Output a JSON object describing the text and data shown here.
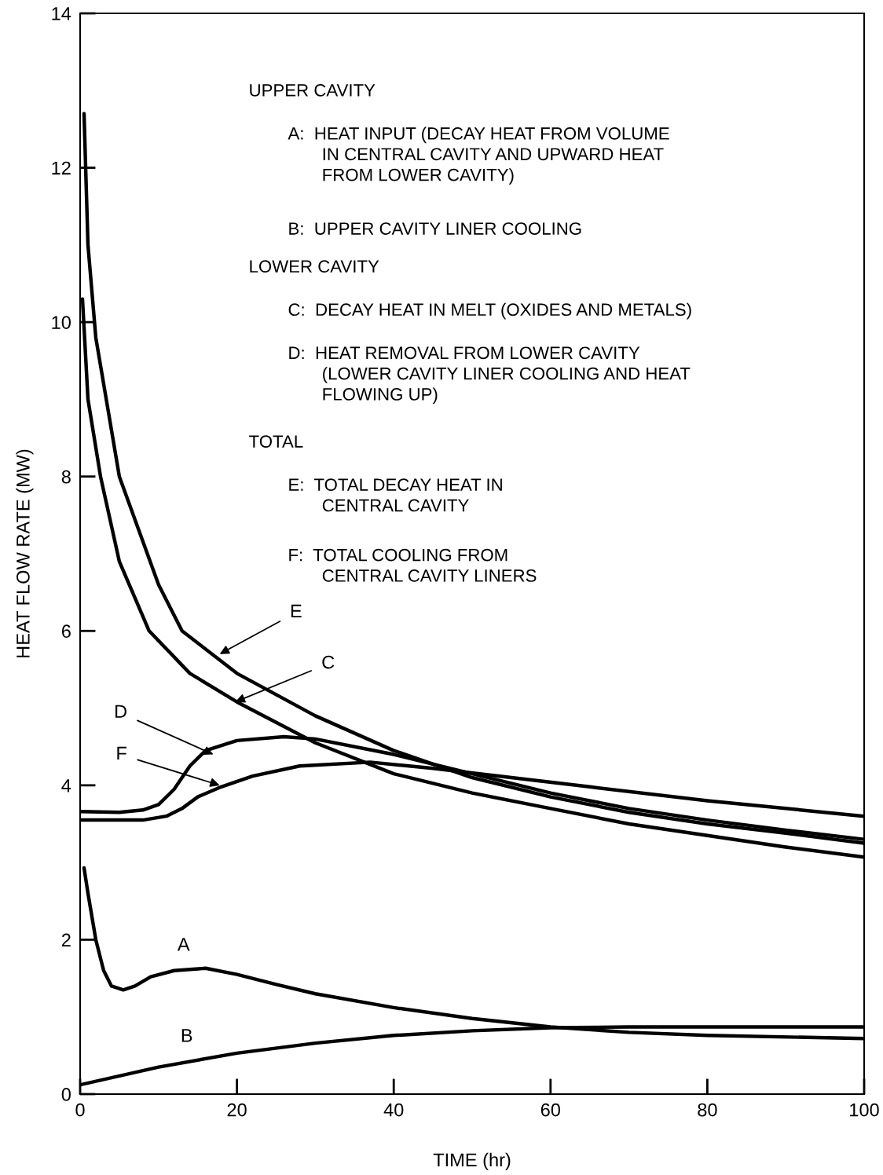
{
  "chart_data": {
    "type": "line",
    "xlabel": "TIME (hr)",
    "ylabel": "HEAT FLOW RATE (MW)",
    "xlim": [
      0,
      100
    ],
    "ylim": [
      0,
      14
    ],
    "xticks": [
      0,
      20,
      40,
      60,
      80,
      100
    ],
    "yticks": [
      0,
      2,
      4,
      6,
      8,
      10,
      12,
      14
    ],
    "grid": false,
    "marker": "none",
    "line_style": "solid",
    "series": [
      {
        "color": "#000000",
        "x": [
          0.5,
          1,
          2,
          3,
          4,
          5.5,
          7,
          9,
          12,
          16,
          20,
          25,
          30,
          40,
          50,
          60,
          70,
          80,
          100
        ],
        "values": [
          2.93,
          2.6,
          2.0,
          1.6,
          1.4,
          1.35,
          1.4,
          1.52,
          1.6,
          1.63,
          1.55,
          1.42,
          1.3,
          1.12,
          0.98,
          0.87,
          0.8,
          0.76,
          0.72
        ]
      },
      {
        "color": "#000000",
        "x": [
          0,
          10,
          20,
          30,
          40,
          50,
          60,
          70,
          100
        ],
        "values": [
          0.12,
          0.35,
          0.53,
          0.66,
          0.76,
          0.82,
          0.86,
          0.87,
          0.87
        ]
      },
      {
        "color": "#000000",
        "x": [
          0.3,
          1,
          2.6,
          5,
          8.8,
          14,
          20,
          30,
          40,
          50,
          60,
          70,
          80,
          90,
          100
        ],
        "values": [
          10.3,
          9.0,
          8.0,
          6.9,
          6.0,
          5.45,
          5.08,
          4.55,
          4.15,
          3.9,
          3.7,
          3.5,
          3.35,
          3.2,
          3.07
        ]
      },
      {
        "color": "#000000",
        "x": [
          0,
          5,
          8,
          10,
          12,
          14,
          16,
          20,
          26,
          30,
          40,
          50,
          60,
          70,
          80,
          90,
          100
        ],
        "values": [
          3.66,
          3.65,
          3.68,
          3.75,
          3.95,
          4.25,
          4.45,
          4.58,
          4.63,
          4.6,
          4.4,
          4.15,
          3.9,
          3.7,
          3.55,
          3.42,
          3.3
        ]
      },
      {
        "color": "#000000",
        "x": [
          0.5,
          1,
          2,
          5,
          10,
          13,
          20,
          30,
          40,
          50,
          60,
          70,
          80,
          90,
          100
        ],
        "values": [
          12.7,
          11.0,
          9.8,
          8.0,
          6.6,
          6.0,
          5.45,
          4.9,
          4.45,
          4.1,
          3.85,
          3.65,
          3.5,
          3.38,
          3.25
        ]
      },
      {
        "color": "#000000",
        "x": [
          0,
          8,
          11,
          13,
          15,
          18,
          22,
          28,
          37,
          45,
          55,
          65,
          80,
          100
        ],
        "values": [
          3.55,
          3.55,
          3.6,
          3.7,
          3.85,
          3.98,
          4.12,
          4.25,
          4.3,
          4.22,
          4.1,
          3.98,
          3.8,
          3.6
        ]
      }
    ],
    "annotations": [
      {
        "text": "A",
        "x": 13.2,
        "y": 1.61
      },
      {
        "text": "B",
        "x": 13.6,
        "y": 0.43
      },
      {
        "text": "C",
        "x": 19.8,
        "y": 5.08
      },
      {
        "text": "D",
        "x": 17,
        "y": 4.4
      },
      {
        "text": "E",
        "x": 17.8,
        "y": 5.7
      },
      {
        "text": "F",
        "x": 17.8,
        "y": 4.0
      },
      "UPPER CAVITY",
      "A:  HEAT INPUT (DECAY HEAT FROM VOLUME\n       IN CENTRAL CAVITY AND UPWARD HEAT\n       FROM LOWER CAVITY)",
      "B:  UPPER CAVITY LINER COOLING",
      "LOWER CAVITY",
      "C:  DECAY HEAT IN MELT (OXIDES AND METALS)",
      "D:  HEAT REMOVAL FROM LOWER CAVITY\n       (LOWER CAVITY LINER COOLING AND HEAT\n       FLOWING UP)",
      "TOTAL",
      "E:  TOTAL DECAY HEAT IN\n       CENTRAL CAVITY",
      "F:  TOTAL COOLING FROM\n       CENTRAL CAVITY LINERS"
    ]
  }
}
